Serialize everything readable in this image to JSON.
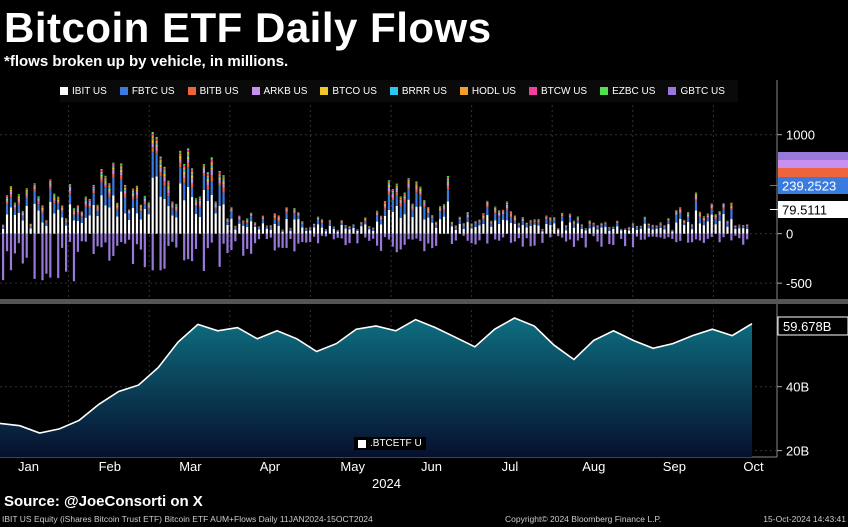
{
  "header": {
    "title": "Bitcoin ETF Daily Flows",
    "subtitle": "*flows broken up by vehicle, in millions."
  },
  "source": "Source: @JoeConsorti on X",
  "footer": {
    "left": "IBIT US Equity (iShares Bitcoin Trust ETF) Bitcoin ETF AUM+Flows  Daily 11JAN2024-15OCT2024",
    "middle": "Copyright© 2024 Bloomberg Finance L.P.",
    "right": "15-Oct-2024 14:43:41"
  },
  "chart_data": [
    {
      "type": "bar",
      "stacked": true,
      "ylim": [
        -650,
        1300
      ],
      "yticks": [
        {
          "value": 1000,
          "label": "1000"
        },
        {
          "value": 0,
          "label": "0"
        },
        {
          "value": -500,
          "label": "-500"
        }
      ],
      "legend_placement": "top",
      "series": [
        {
          "name": "IBIT US",
          "color": "#ffffff"
        },
        {
          "name": "FBTC US",
          "color": "#3a7be0"
        },
        {
          "name": "BITB US",
          "color": "#f0643c"
        },
        {
          "name": "ARKB US",
          "color": "#c890f0"
        },
        {
          "name": "BTCO US",
          "color": "#f0c828"
        },
        {
          "name": "BRRR US",
          "color": "#28c8f0"
        },
        {
          "name": "HODL US",
          "color": "#f0a028"
        },
        {
          "name": "BTCW US",
          "color": "#f040a0"
        },
        {
          "name": "EZBC US",
          "color": "#50e050"
        },
        {
          "name": "GBTC US",
          "color": "#9878d8"
        }
      ],
      "last_value_labels": [
        {
          "label": "239.2523",
          "color": "#3a7be0",
          "value": 239.2523
        },
        {
          "label": "79.5111",
          "color": "#ffffff",
          "value": 79.5111
        }
      ],
      "monthly_profile": [
        {
          "month": "Jan",
          "pos": 420,
          "neg": -480
        },
        {
          "month": "Feb",
          "pos": 620,
          "neg": -350
        },
        {
          "month": "Mar",
          "pos": 900,
          "neg": -420
        },
        {
          "month": "Apr",
          "pos": 240,
          "neg": -220
        },
        {
          "month": "May",
          "pos": 150,
          "neg": -120
        },
        {
          "month": "Jun",
          "pos": 500,
          "neg": -180
        },
        {
          "month": "Jul",
          "pos": 310,
          "neg": -130
        },
        {
          "month": "Aug",
          "pos": 170,
          "neg": -140
        },
        {
          "month": "Sep",
          "pos": 140,
          "neg": -150
        },
        {
          "month": "Oct",
          "pos": 300,
          "neg": -120
        }
      ]
    },
    {
      "type": "area",
      "ylim": [
        18,
        64
      ],
      "yticks": [
        {
          "value": 40,
          "label": "40B"
        },
        {
          "value": 20,
          "label": "20B"
        }
      ],
      "series": [
        {
          "name": ".BTCETF U",
          "color": "#ffffff"
        }
      ],
      "last_value_label": "59.678B",
      "x": [
        "Jan",
        "Jan",
        "Jan",
        "Jan",
        "Jan",
        "Feb",
        "Feb",
        "Feb",
        "Feb",
        "Mar",
        "Mar",
        "Mar",
        "Mar",
        "Apr",
        "Apr",
        "Apr",
        "Apr",
        "May",
        "May",
        "May",
        "May",
        "Jun",
        "Jun",
        "Jun",
        "Jun",
        "Jul",
        "Jul",
        "Jul",
        "Jul",
        "Aug",
        "Aug",
        "Aug",
        "Aug",
        "Sep",
        "Sep",
        "Sep",
        "Sep",
        "Oct",
        "Oct"
      ],
      "values": [
        28.5,
        27.8,
        25.5,
        26.8,
        29.5,
        34.5,
        38.5,
        40.5,
        46.0,
        54.0,
        59.5,
        57.5,
        58.5,
        55.0,
        57.5,
        55.0,
        51.0,
        53.5,
        58.0,
        59.0,
        57.5,
        61.0,
        58.5,
        55.5,
        52.5,
        58.0,
        61.5,
        59.0,
        53.0,
        48.5,
        54.5,
        57.5,
        54.5,
        52.0,
        53.5,
        56.0,
        58.0,
        56.0,
        59.7
      ]
    }
  ],
  "xaxis": {
    "months": [
      "Jan",
      "Feb",
      "Mar",
      "Apr",
      "May",
      "Jun",
      "Jul",
      "Aug",
      "Sep",
      "Oct"
    ],
    "year": "2024"
  }
}
